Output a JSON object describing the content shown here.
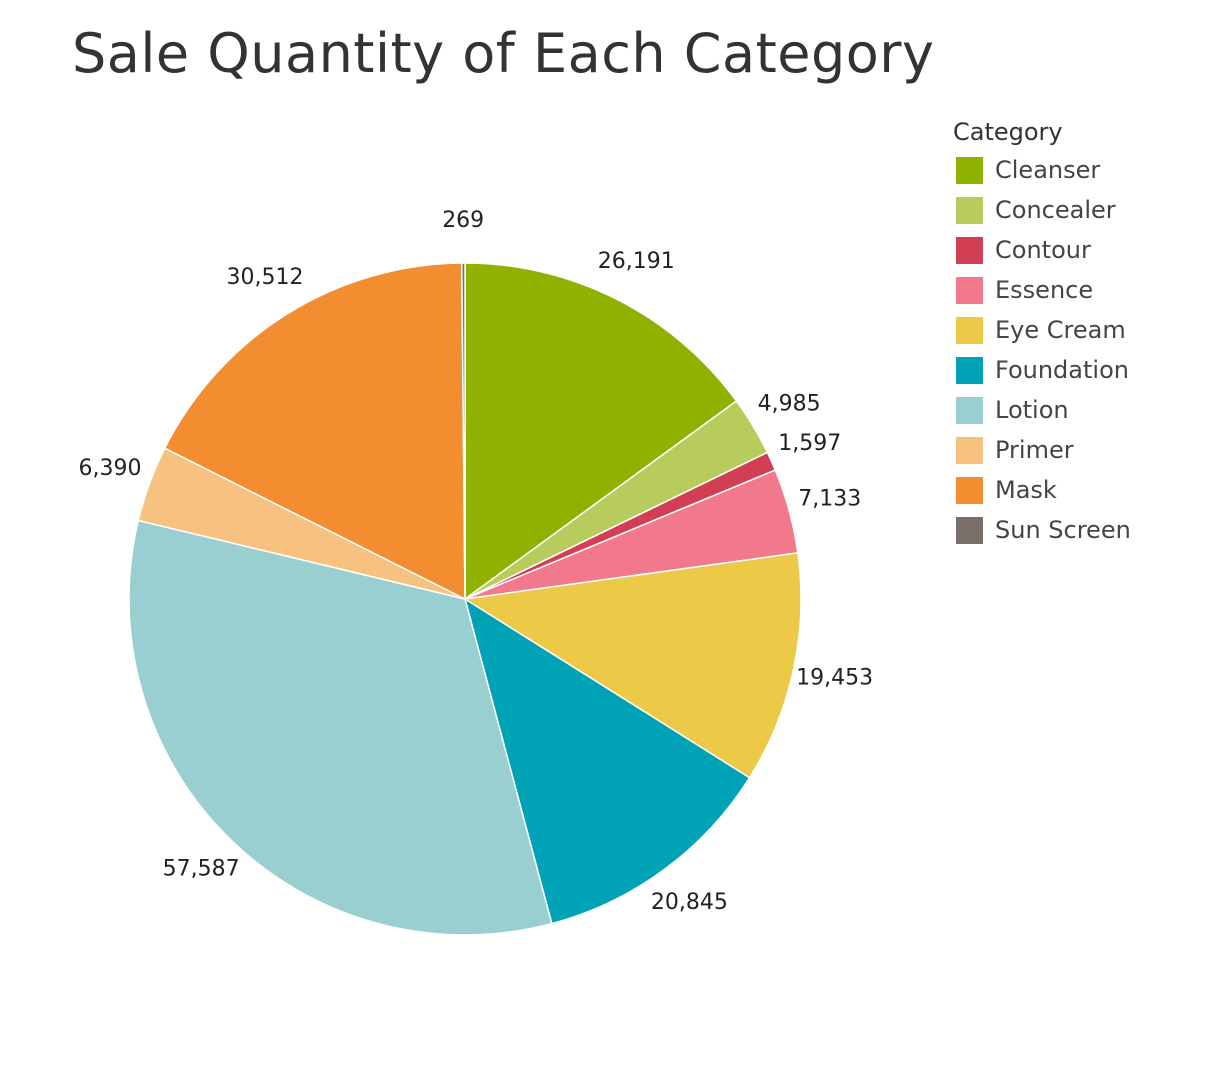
{
  "chart_data": {
    "type": "pie",
    "title": "Sale Quantity of Each Category",
    "legend_title": "Category",
    "legend_placement": "right",
    "start_angle_deg": 0,
    "direction": "clockwise",
    "slices": [
      {
        "name": "Cleanser",
        "value": 26191,
        "label": "26,191",
        "color": "#8fb100"
      },
      {
        "name": "Concealer",
        "value": 4985,
        "label": "4,985",
        "color": "#b7cc5d"
      },
      {
        "name": "Contour",
        "value": 1597,
        "label": "1,597",
        "color": "#d23f55"
      },
      {
        "name": "Essence",
        "value": 7133,
        "label": "7,133",
        "color": "#f2788c"
      },
      {
        "name": "Eye Cream",
        "value": 19453,
        "label": "19,453",
        "color": "#ecc946"
      },
      {
        "name": "Foundation",
        "value": 20845,
        "label": "20,845",
        "color": "#00a2b5"
      },
      {
        "name": "Lotion",
        "value": 57587,
        "label": "57,587",
        "color": "#99cfd0"
      },
      {
        "name": "Primer",
        "value": 6390,
        "label": "6,390",
        "color": "#f7c27f"
      },
      {
        "name": "Mask",
        "value": 30512,
        "label": "30,512",
        "color": "#f28e30"
      },
      {
        "name": "Sun Screen",
        "value": 269,
        "label": "269",
        "color": "#7a6e6b"
      }
    ],
    "legend": [
      {
        "name": "Cleanser",
        "color": "#8fb100"
      },
      {
        "name": "Concealer",
        "color": "#b7cc5d"
      },
      {
        "name": "Contour",
        "color": "#d23f55"
      },
      {
        "name": "Essence",
        "color": "#f2788c"
      },
      {
        "name": "Eye Cream",
        "color": "#ecc946"
      },
      {
        "name": "Foundation",
        "color": "#00a2b5"
      },
      {
        "name": "Lotion",
        "color": "#99cfd0"
      },
      {
        "name": "Primer",
        "color": "#f7c27f"
      },
      {
        "name": "Mask",
        "color": "#f28e30"
      },
      {
        "name": "Sun Screen",
        "color": "#7a6e6b"
      }
    ]
  }
}
